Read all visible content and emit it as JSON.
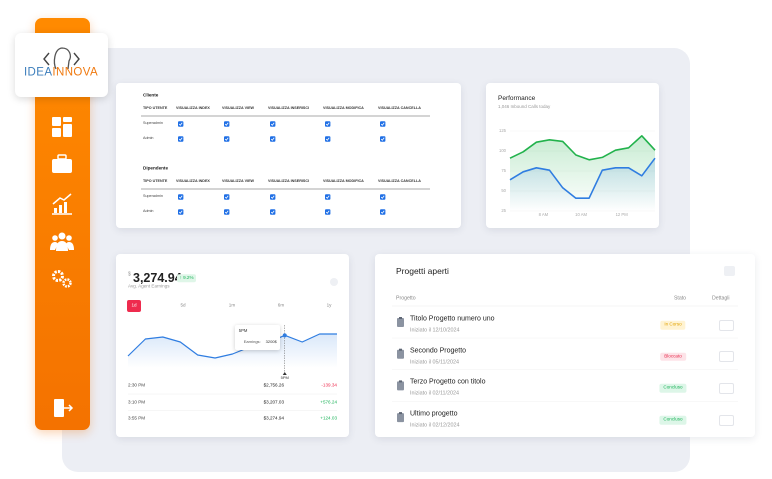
{
  "brand": {
    "logo_left": "IDEA",
    "logo_right": "INNOVA"
  },
  "permissions": {
    "groups": [
      {
        "title": "Cliente",
        "columns": [
          "TIPO UTENTE",
          "VISUALIZZA INDEX",
          "VISUALIZZA VIEW",
          "VISUALIZZA INSERISCI",
          "VISUALIZZA MODIFICA",
          "VISUALIZZA CANCELLA"
        ],
        "rows": [
          {
            "label": "Superadmin",
            "checks": [
              true,
              true,
              true,
              true,
              true
            ]
          },
          {
            "label": "Admin",
            "checks": [
              true,
              true,
              true,
              true,
              true
            ]
          }
        ]
      },
      {
        "title": "Dipendente",
        "columns": [
          "TIPO UTENTE",
          "VISUALIZZA INDEX",
          "VISUALIZZA VIEW",
          "VISUALIZZA INSERISCI",
          "VISUALIZZA MODIFICA",
          "VISUALIZZA CANCELLA"
        ],
        "rows": [
          {
            "label": "Superadmin",
            "checks": [
              true,
              true,
              true,
              true,
              true
            ]
          },
          {
            "label": "Admin",
            "checks": [
              true,
              true,
              true,
              true,
              true
            ]
          }
        ]
      }
    ]
  },
  "performance": {
    "type": "line",
    "title": "Performance",
    "subtitle": "1,046 Inbound Calls today",
    "ylim": [
      25,
      125
    ],
    "yticks": [
      25,
      50,
      75,
      100,
      125
    ],
    "xticks": [
      "8 AM",
      "10 AM",
      "12 PM"
    ],
    "series": [
      {
        "color": "#22b24c",
        "values": [
          91,
          99,
          111,
          114,
          112,
          95,
          89,
          92,
          101,
          104,
          119,
          101
        ]
      },
      {
        "color": "#2f7de1",
        "values": [
          64,
          74,
          79,
          76,
          54,
          41,
          41,
          76,
          79,
          79,
          69,
          91
        ]
      }
    ]
  },
  "earnings": {
    "currency": "$",
    "amount": "3,274.94",
    "change": "↑ 9.2%",
    "subtitle": "Avg. Agent Earnings",
    "tabs": [
      "1d",
      "5d",
      "1m",
      "6m",
      "1y"
    ],
    "active_tab": 0,
    "color": "#2f7de1",
    "ylim": [
      2900,
      3260
    ],
    "values": [
      2968,
      3159,
      3181,
      3125,
      2979,
      2945,
      2990,
      3069,
      3114,
      3200,
      3125,
      3215,
      3215
    ],
    "tooltip_index": 9,
    "tooltip": {
      "title": "5PM",
      "label": "Earnings:",
      "value": "3200$"
    },
    "marker": "5PM",
    "rows": [
      {
        "time": "2:30 PM",
        "amount": "$2,756.26",
        "change": "-139.34"
      },
      {
        "time": "3:10 PM",
        "amount": "$3,207.03",
        "change": "+576.24"
      },
      {
        "time": "3:55 PM",
        "amount": "$3,274.94",
        "change": "+124.03"
      }
    ]
  },
  "projects": {
    "title": "Progetti aperti",
    "headers": [
      "Progetto",
      "Stato",
      "Dettagli"
    ],
    "rows": [
      {
        "name": "Titolo Progetto numero uno",
        "date": "Iniziato il 12/10/2024",
        "status": "In Corso",
        "tone": "warning"
      },
      {
        "name": "Secondo Progetto",
        "date": "Iniziato il 05/11/2024",
        "status": "Bloccato",
        "tone": "danger"
      },
      {
        "name": "Terzo Progetto con titolo",
        "date": "Iniziato il 02/11/2024",
        "status": "Concluso",
        "tone": "success"
      },
      {
        "name": "Ultimo progetto",
        "date": "Iniziato il 02/12/2024",
        "status": "Concluso",
        "tone": "success"
      }
    ]
  }
}
